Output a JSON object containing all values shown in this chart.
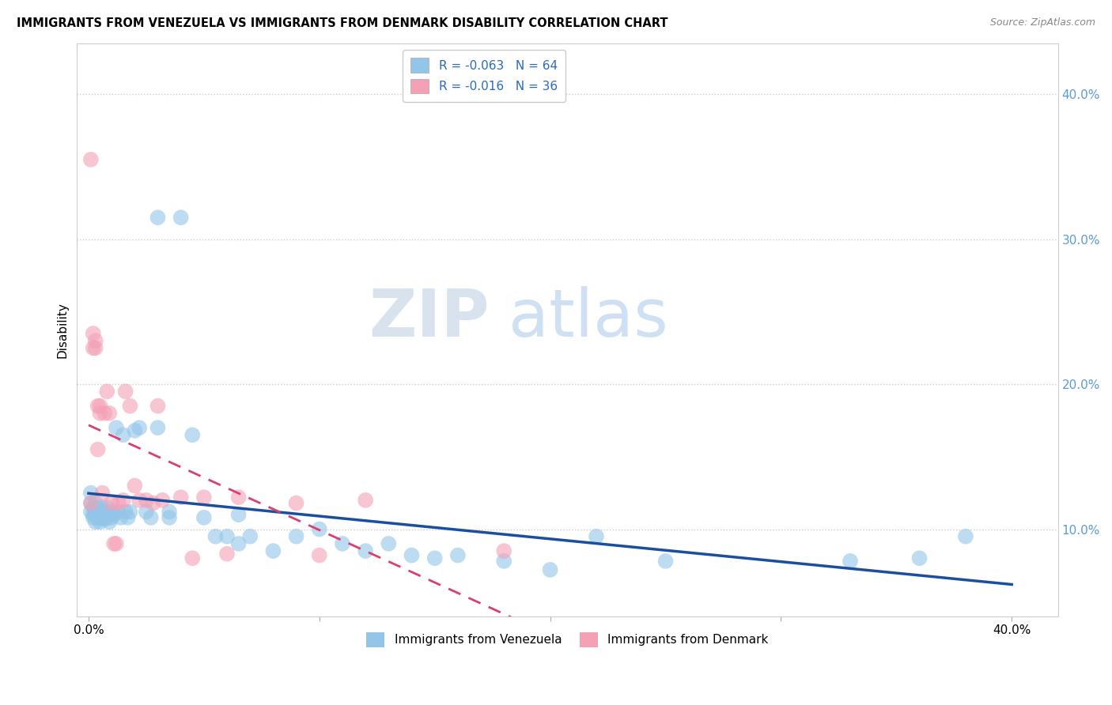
{
  "title": "IMMIGRANTS FROM VENEZUELA VS IMMIGRANTS FROM DENMARK DISABILITY CORRELATION CHART",
  "source": "Source: ZipAtlas.com",
  "ylabel": "Disability",
  "legend_title_1": "R = -0.063   N = 64",
  "legend_title_2": "R = -0.016   N = 36",
  "legend_label_1": "Immigrants from Venezuela",
  "legend_label_2": "Immigrants from Denmark",
  "color_venezuela": "#92c5e8",
  "color_denmark": "#f4a0b5",
  "color_line_venezuela": "#1a4fa0",
  "color_line_denmark": "#d94070",
  "background_color": "#ffffff",
  "watermark_zip": "ZIP",
  "watermark_atlas": "atlas",
  "venezuela_x": [
    0.001,
    0.001,
    0.001,
    0.002,
    0.002,
    0.002,
    0.003,
    0.003,
    0.003,
    0.004,
    0.004,
    0.004,
    0.005,
    0.005,
    0.005,
    0.006,
    0.006,
    0.007,
    0.007,
    0.008,
    0.008,
    0.009,
    0.01,
    0.01,
    0.011,
    0.012,
    0.013,
    0.014,
    0.015,
    0.016,
    0.017,
    0.018,
    0.02,
    0.022,
    0.025,
    0.027,
    0.03,
    0.03,
    0.035,
    0.035,
    0.04,
    0.045,
    0.05,
    0.055,
    0.06,
    0.065,
    0.065,
    0.07,
    0.08,
    0.09,
    0.1,
    0.11,
    0.12,
    0.13,
    0.14,
    0.15,
    0.16,
    0.18,
    0.2,
    0.22,
    0.25,
    0.33,
    0.36,
    0.38
  ],
  "venezuela_y": [
    0.125,
    0.118,
    0.112,
    0.115,
    0.11,
    0.108,
    0.118,
    0.112,
    0.105,
    0.115,
    0.11,
    0.108,
    0.112,
    0.108,
    0.105,
    0.115,
    0.108,
    0.112,
    0.107,
    0.115,
    0.108,
    0.105,
    0.112,
    0.108,
    0.11,
    0.17,
    0.112,
    0.108,
    0.165,
    0.112,
    0.108,
    0.112,
    0.168,
    0.17,
    0.112,
    0.108,
    0.315,
    0.17,
    0.112,
    0.108,
    0.315,
    0.165,
    0.108,
    0.095,
    0.095,
    0.09,
    0.11,
    0.095,
    0.085,
    0.095,
    0.1,
    0.09,
    0.085,
    0.09,
    0.082,
    0.08,
    0.082,
    0.078,
    0.072,
    0.095,
    0.078,
    0.078,
    0.08,
    0.095
  ],
  "denmark_x": [
    0.001,
    0.001,
    0.002,
    0.002,
    0.003,
    0.003,
    0.004,
    0.004,
    0.005,
    0.005,
    0.006,
    0.007,
    0.008,
    0.009,
    0.01,
    0.011,
    0.012,
    0.013,
    0.015,
    0.016,
    0.018,
    0.02,
    0.022,
    0.025,
    0.028,
    0.03,
    0.032,
    0.04,
    0.045,
    0.05,
    0.06,
    0.065,
    0.09,
    0.1,
    0.12,
    0.18
  ],
  "denmark_y": [
    0.355,
    0.118,
    0.235,
    0.225,
    0.23,
    0.225,
    0.155,
    0.185,
    0.18,
    0.185,
    0.125,
    0.18,
    0.195,
    0.18,
    0.118,
    0.09,
    0.09,
    0.118,
    0.12,
    0.195,
    0.185,
    0.13,
    0.12,
    0.12,
    0.118,
    0.185,
    0.12,
    0.122,
    0.08,
    0.122,
    0.083,
    0.122,
    0.118,
    0.082,
    0.12,
    0.085
  ],
  "xlim": [
    -0.005,
    0.42
  ],
  "ylim": [
    0.04,
    0.435
  ],
  "x_ticks": [
    0.0,
    0.1,
    0.2,
    0.3,
    0.4
  ],
  "y_ticks_right": [
    0.1,
    0.2,
    0.3,
    0.4
  ],
  "y_tick_labels_right": [
    "10.0%",
    "20.0%",
    "30.0%",
    "40.0%"
  ]
}
